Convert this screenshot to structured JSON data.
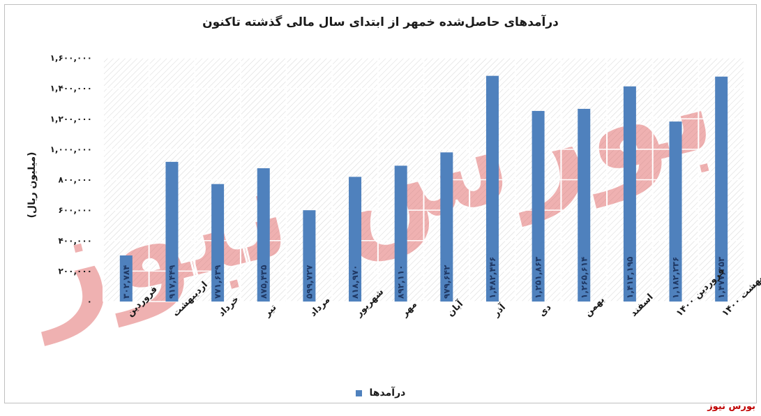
{
  "chart_data": {
    "type": "bar",
    "title": "درآمدهای حاصل‌شده خمهر از ابتدای سال مالی گذشته تاکنون",
    "ylabel": "(میلیون ریال)",
    "xlabel": "",
    "ylim": [
      0,
      1600000
    ],
    "yticks": [
      0,
      200000,
      400000,
      600000,
      800000,
      1000000,
      1200000,
      1400000,
      1600000
    ],
    "ytick_labels": [
      "۰",
      "۲۰۰,۰۰۰",
      "۴۰۰,۰۰۰",
      "۶۰۰,۰۰۰",
      "۸۰۰,۰۰۰",
      "۱,۰۰۰,۰۰۰",
      "۱,۲۰۰,۰۰۰",
      "۱,۴۰۰,۰۰۰",
      "۱,۶۰۰,۰۰۰"
    ],
    "categories": [
      "فروردین",
      "اردیبهشت",
      "خرداد",
      "تیر",
      "مرداد",
      "شهریور",
      "مهر",
      "آبان",
      "آذر",
      "دی",
      "بهمن",
      "اسفند",
      "فروردین ۱۴۰۰",
      "اردیبهشت ۱۴۰۰"
    ],
    "series": [
      {
        "name": "درآمدها",
        "values": [
          302784,
          917449,
          771639,
          875435,
          599727,
          818970,
          892110,
          979642,
          1482446,
          1251863,
          1265614,
          1413195,
          1182236,
          1477353
        ],
        "data_labels": [
          "۳۰۲,۷۸۴",
          "۹۱۷,۴۴۹",
          "۷۷۱,۶۳۹",
          "۸۷۵,۴۳۵",
          "۵۹۹,۷۲۷",
          "۸۱۸,۹۷۰",
          "۸۹۲,۱۱۰",
          "۹۷۹,۶۴۲",
          "۱,۴۸۲,۴۴۶",
          "۱,۲۵۱,۸۶۳",
          "۱,۲۶۵,۶۱۴",
          "۱,۴۱۳,۱۹۵",
          "۱,۱۸۲,۲۳۶",
          "۱,۴۷۷,۳۵۳"
        ]
      }
    ],
    "legend_position": "bottom",
    "grid": true,
    "colors": {
      "bar": "#4f81bd",
      "label": "#1f3864",
      "watermark": "#e06666",
      "brand": "#c00000"
    }
  },
  "brand": "بورس نیوز",
  "watermark_text": "بورس نیوز"
}
